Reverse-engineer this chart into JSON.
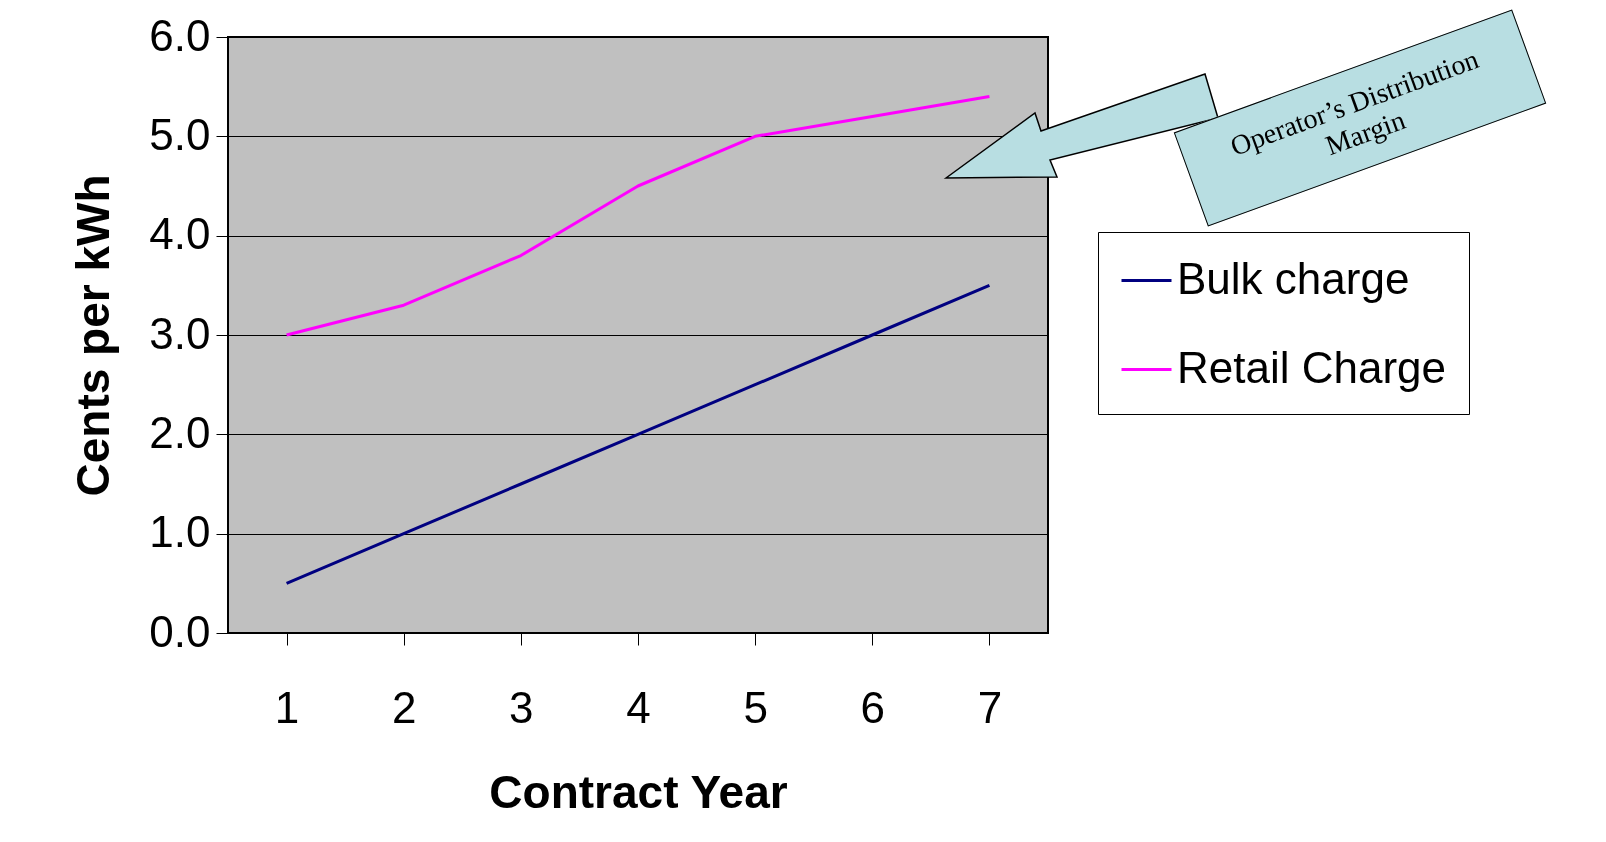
{
  "chart_data": {
    "type": "line",
    "xlabel": "Contract Year",
    "ylabel": "Cents per kWh",
    "categories": [
      "1",
      "2",
      "3",
      "4",
      "5",
      "6",
      "7"
    ],
    "series": [
      {
        "name": "Bulk charge",
        "color": "#000080",
        "values": [
          0.5,
          1.0,
          1.5,
          2.0,
          2.5,
          3.0,
          3.5
        ]
      },
      {
        "name": "Retail Charge",
        "color": "#ff00ff",
        "values": [
          3.0,
          3.3,
          3.8,
          4.5,
          5.0,
          5.2,
          5.4
        ]
      }
    ],
    "ylim": [
      0,
      6
    ],
    "yticks": [
      {
        "value": 0,
        "label": "0.0"
      },
      {
        "value": 1,
        "label": "1.0"
      },
      {
        "value": 2,
        "label": "2.0"
      },
      {
        "value": 3,
        "label": "3.0"
      },
      {
        "value": 4,
        "label": "4.0"
      },
      {
        "value": 5,
        "label": "5.0"
      },
      {
        "value": 6,
        "label": "6.0"
      }
    ],
    "grid": "y",
    "legend": "right",
    "marker": "none",
    "line_style": "solid",
    "annotations": [
      "Operator’s Distribution Margin"
    ]
  }
}
